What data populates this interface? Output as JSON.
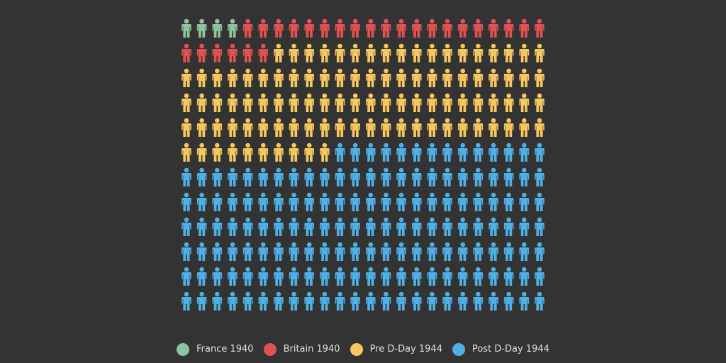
{
  "chart_data": {
    "type": "pictogram",
    "icon": "person-icon",
    "columns": 24,
    "categories": [
      "France 1940",
      "Britain 1940",
      "Pre D-Day 1944",
      "Post D-Day 1944"
    ],
    "values": [
      4,
      26,
      100,
      158
    ],
    "colors": [
      "#8dc3a0",
      "#e05252",
      "#f5c75e",
      "#4fb0e5"
    ],
    "legend_position": "bottom-center"
  }
}
